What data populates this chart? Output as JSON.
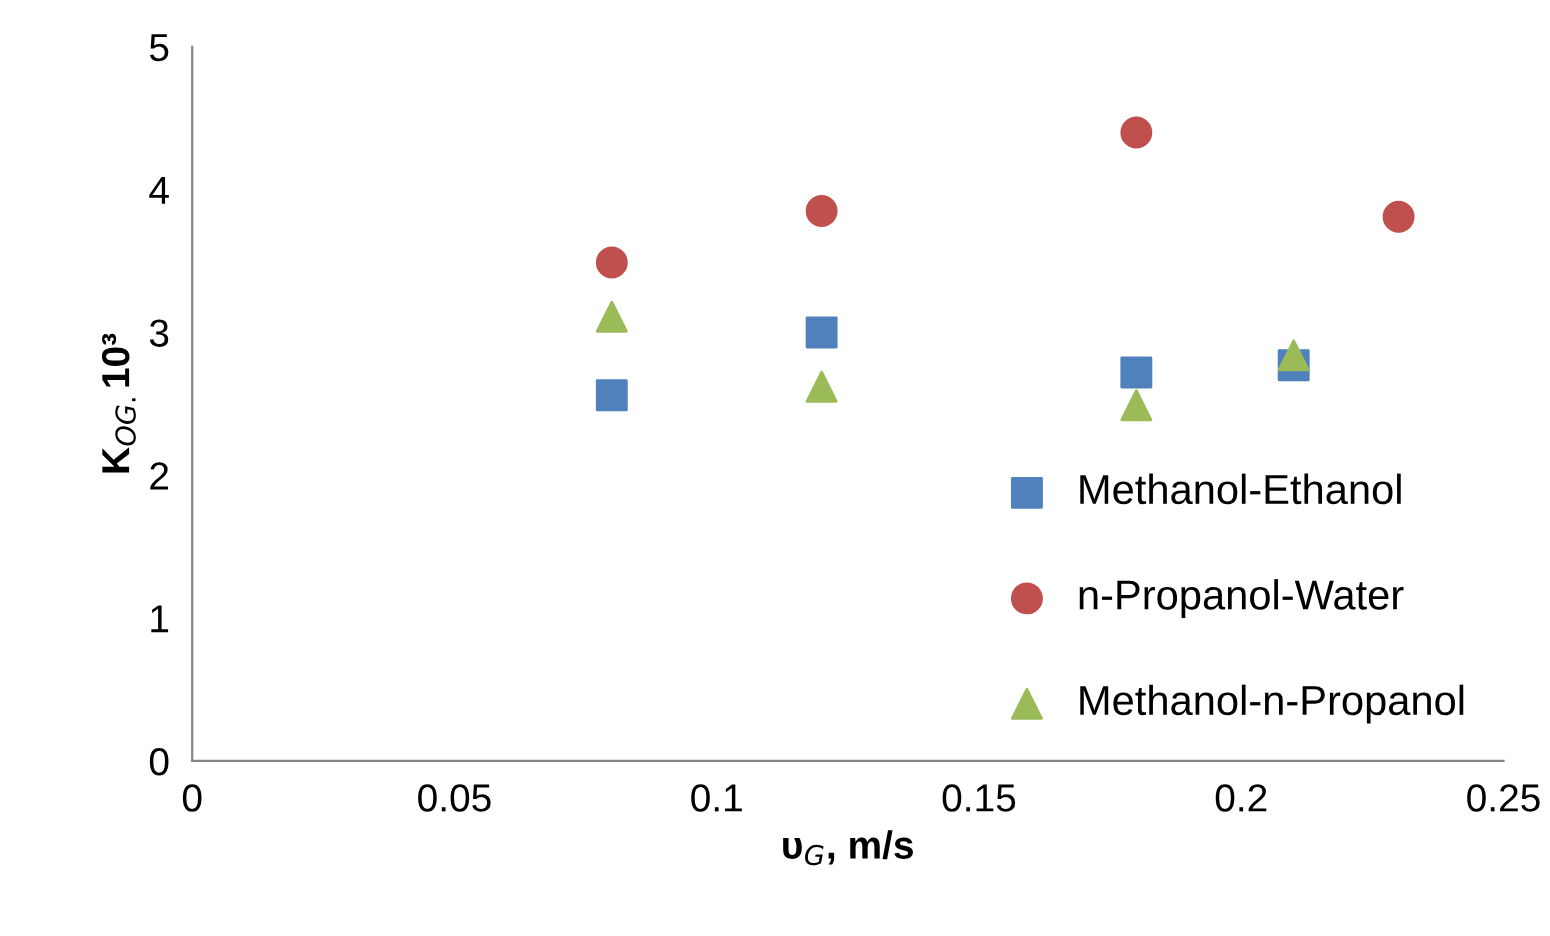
{
  "chart_data": {
    "type": "scatter",
    "xlabel": "υ$_{G}$, m/s",
    "ylabel": "K$_{OG.}$10³",
    "xlim": [
      0,
      0.25
    ],
    "xticks": [
      0,
      0.05,
      0.1,
      0.15,
      0.2,
      0.25
    ],
    "ylim": [
      0,
      5
    ],
    "yticks": [
      0,
      1,
      2,
      3,
      4,
      5
    ],
    "grid": false,
    "legend": "lower right",
    "series": [
      {
        "name": "Methanol-Ethanol",
        "color": "#4f81bd",
        "marker": "square",
        "x": [
          0.08,
          0.12,
          0.18,
          0.21
        ],
        "values": [
          2.56,
          3.0,
          2.72,
          2.77
        ]
      },
      {
        "name": "n-Propanol-Water",
        "color": "#c0504d",
        "marker": "circle",
        "x": [
          0.08,
          0.12,
          0.18,
          0.23
        ],
        "values": [
          3.49,
          3.85,
          4.4,
          3.81
        ]
      },
      {
        "name": "Methanol-n-Propanol",
        "color": "#9bbb59",
        "marker": "triangle",
        "x": [
          0.08,
          0.12,
          0.18,
          0.21
        ],
        "values": [
          3.11,
          2.62,
          2.49,
          2.84
        ]
      }
    ]
  }
}
